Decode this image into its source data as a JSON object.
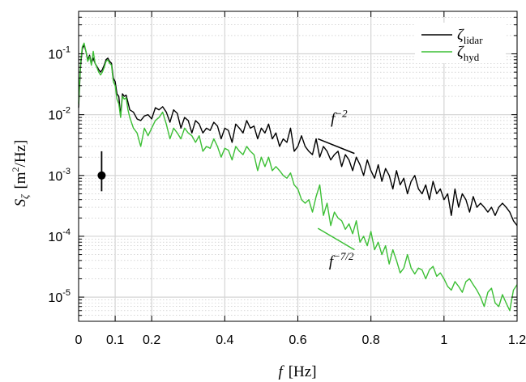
{
  "chart_data": {
    "type": "line",
    "xlabel": {
      "var": "f",
      "unit": "[Hz]"
    },
    "ylabel": {
      "var": "S",
      "sub": "ζ",
      "unit_pre": "[m",
      "unit_sup": "2",
      "unit_post": "/Hz]"
    },
    "xlim": [
      0,
      1.2
    ],
    "ylim": [
      4e-06,
      0.5
    ],
    "yscale": "log",
    "grid": true,
    "legend_position": "top-right",
    "x_ticks": [
      {
        "value": 0,
        "label": "0"
      },
      {
        "value": 0.1,
        "label": "0.1"
      },
      {
        "value": 0.2,
        "label": "0.2"
      },
      {
        "value": 0.4,
        "label": "0.4"
      },
      {
        "value": 0.6,
        "label": "0.6"
      },
      {
        "value": 0.8,
        "label": "0.8"
      },
      {
        "value": 1.0,
        "label": "1"
      },
      {
        "value": 1.2,
        "label": "1.2"
      }
    ],
    "y_ticks": [
      {
        "value": 1e-05,
        "base": "10",
        "exp": "-5"
      },
      {
        "value": 0.0001,
        "base": "10",
        "exp": "-4"
      },
      {
        "value": 0.001,
        "base": "10",
        "exp": "-3"
      },
      {
        "value": 0.01,
        "base": "10",
        "exp": "-2"
      },
      {
        "value": 0.1,
        "base": "10",
        "exp": "-1"
      }
    ],
    "series": [
      {
        "name": "ζ",
        "name_sub": "lidar",
        "color": "#000000",
        "x": [
          0.0,
          0.005,
          0.01,
          0.015,
          0.02,
          0.025,
          0.03,
          0.035,
          0.04,
          0.045,
          0.05,
          0.055,
          0.06,
          0.065,
          0.07,
          0.075,
          0.08,
          0.085,
          0.09,
          0.095,
          0.1,
          0.105,
          0.11,
          0.115,
          0.12,
          0.125,
          0.13,
          0.135,
          0.14,
          0.15,
          0.16,
          0.17,
          0.18,
          0.19,
          0.2,
          0.21,
          0.22,
          0.23,
          0.24,
          0.25,
          0.26,
          0.27,
          0.28,
          0.29,
          0.3,
          0.31,
          0.32,
          0.33,
          0.34,
          0.35,
          0.36,
          0.37,
          0.38,
          0.39,
          0.4,
          0.41,
          0.42,
          0.43,
          0.44,
          0.45,
          0.46,
          0.47,
          0.48,
          0.49,
          0.5,
          0.51,
          0.52,
          0.53,
          0.54,
          0.55,
          0.56,
          0.57,
          0.58,
          0.59,
          0.6,
          0.61,
          0.62,
          0.63,
          0.64,
          0.65,
          0.66,
          0.67,
          0.68,
          0.69,
          0.7,
          0.71,
          0.72,
          0.73,
          0.74,
          0.75,
          0.76,
          0.77,
          0.78,
          0.79,
          0.8,
          0.81,
          0.82,
          0.83,
          0.84,
          0.85,
          0.86,
          0.87,
          0.88,
          0.89,
          0.9,
          0.91,
          0.92,
          0.93,
          0.94,
          0.95,
          0.96,
          0.97,
          0.98,
          0.99,
          1.0,
          1.01,
          1.02,
          1.03,
          1.04,
          1.05,
          1.06,
          1.07,
          1.08,
          1.09,
          1.1,
          1.11,
          1.12,
          1.13,
          1.14,
          1.15,
          1.16,
          1.17,
          1.18,
          1.19,
          1.2
        ],
        "y": [
          0.013,
          0.06,
          0.12,
          0.14,
          0.11,
          0.08,
          0.095,
          0.07,
          0.085,
          0.07,
          0.062,
          0.055,
          0.05,
          0.055,
          0.065,
          0.08,
          0.085,
          0.075,
          0.07,
          0.04,
          0.035,
          0.022,
          0.02,
          0.0095,
          0.022,
          0.02,
          0.021,
          0.016,
          0.012,
          0.011,
          0.0085,
          0.008,
          0.0095,
          0.01,
          0.0085,
          0.013,
          0.012,
          0.0135,
          0.011,
          0.0075,
          0.012,
          0.0105,
          0.006,
          0.009,
          0.008,
          0.005,
          0.008,
          0.007,
          0.005,
          0.006,
          0.0055,
          0.0075,
          0.0065,
          0.004,
          0.006,
          0.0055,
          0.0035,
          0.007,
          0.006,
          0.005,
          0.008,
          0.006,
          0.0065,
          0.004,
          0.006,
          0.005,
          0.007,
          0.004,
          0.005,
          0.003,
          0.004,
          0.0035,
          0.006,
          0.0025,
          0.003,
          0.0045,
          0.003,
          0.0025,
          0.0022,
          0.004,
          0.002,
          0.003,
          0.0025,
          0.0018,
          0.0022,
          0.0025,
          0.0014,
          0.0022,
          0.0018,
          0.0012,
          0.002,
          0.0015,
          0.001,
          0.0018,
          0.0012,
          0.0009,
          0.0015,
          0.0008,
          0.0013,
          0.001,
          0.0006,
          0.0012,
          0.0007,
          0.0009,
          0.0005,
          0.0008,
          0.001,
          0.0006,
          0.0005,
          0.0007,
          0.0004,
          0.0008,
          0.0005,
          0.0006,
          0.0004,
          0.0005,
          0.00022,
          0.0006,
          0.0003,
          0.0005,
          0.0004,
          0.00025,
          0.00045,
          0.0003,
          0.00035,
          0.0003,
          0.00025,
          0.0003,
          0.00022,
          0.0003,
          0.00035,
          0.0003,
          0.00025,
          0.00018,
          0.00015
        ]
      },
      {
        "name": "ζ",
        "name_sub": "hyd",
        "color": "#3cbf35",
        "x": [
          0.0,
          0.005,
          0.01,
          0.015,
          0.02,
          0.025,
          0.03,
          0.035,
          0.04,
          0.045,
          0.05,
          0.055,
          0.06,
          0.065,
          0.07,
          0.075,
          0.08,
          0.085,
          0.09,
          0.095,
          0.1,
          0.105,
          0.11,
          0.115,
          0.12,
          0.125,
          0.13,
          0.135,
          0.14,
          0.15,
          0.16,
          0.17,
          0.18,
          0.19,
          0.2,
          0.21,
          0.22,
          0.23,
          0.24,
          0.25,
          0.26,
          0.27,
          0.28,
          0.29,
          0.3,
          0.31,
          0.32,
          0.33,
          0.34,
          0.35,
          0.36,
          0.37,
          0.38,
          0.39,
          0.4,
          0.41,
          0.42,
          0.43,
          0.44,
          0.45,
          0.46,
          0.47,
          0.48,
          0.49,
          0.5,
          0.51,
          0.52,
          0.53,
          0.54,
          0.55,
          0.56,
          0.57,
          0.58,
          0.59,
          0.6,
          0.61,
          0.62,
          0.63,
          0.64,
          0.65,
          0.66,
          0.67,
          0.68,
          0.69,
          0.7,
          0.71,
          0.72,
          0.73,
          0.74,
          0.75,
          0.76,
          0.77,
          0.78,
          0.79,
          0.8,
          0.81,
          0.82,
          0.83,
          0.84,
          0.85,
          0.86,
          0.87,
          0.88,
          0.89,
          0.9,
          0.91,
          0.92,
          0.93,
          0.94,
          0.95,
          0.96,
          0.97,
          0.98,
          0.99,
          1.0,
          1.01,
          1.02,
          1.03,
          1.04,
          1.05,
          1.06,
          1.07,
          1.08,
          1.09,
          1.1,
          1.11,
          1.12,
          1.13,
          1.14,
          1.15,
          1.16,
          1.17,
          1.18,
          1.19,
          1.2
        ],
        "y": [
          0.015,
          0.065,
          0.13,
          0.15,
          0.11,
          0.075,
          0.09,
          0.065,
          0.11,
          0.07,
          0.06,
          0.05,
          0.045,
          0.05,
          0.06,
          0.075,
          0.08,
          0.07,
          0.065,
          0.035,
          0.03,
          0.018,
          0.015,
          0.009,
          0.02,
          0.018,
          0.019,
          0.012,
          0.009,
          0.006,
          0.005,
          0.003,
          0.006,
          0.0045,
          0.006,
          0.008,
          0.009,
          0.011,
          0.007,
          0.004,
          0.006,
          0.005,
          0.004,
          0.006,
          0.005,
          0.0045,
          0.0035,
          0.0045,
          0.0025,
          0.003,
          0.0028,
          0.004,
          0.003,
          0.002,
          0.0028,
          0.0026,
          0.0018,
          0.003,
          0.0025,
          0.0022,
          0.003,
          0.0025,
          0.0022,
          0.0012,
          0.002,
          0.0014,
          0.002,
          0.0012,
          0.0014,
          0.0012,
          0.001,
          0.0009,
          0.0011,
          0.0007,
          0.0006,
          0.0004,
          0.00035,
          0.0004,
          0.00025,
          0.00045,
          0.0007,
          0.00022,
          0.00035,
          0.00015,
          0.00025,
          0.0002,
          0.00018,
          0.00013,
          0.00016,
          0.00011,
          0.00018,
          8e-05,
          0.0001,
          7e-05,
          0.00012,
          6e-05,
          8e-05,
          5e-05,
          7e-05,
          3.5e-05,
          6e-05,
          4e-05,
          2.5e-05,
          3e-05,
          5e-05,
          3e-05,
          2.4e-05,
          3e-05,
          2.8e-05,
          2e-05,
          2.8e-05,
          3.2e-05,
          2.2e-05,
          2.5e-05,
          2e-05,
          1.5e-05,
          1.3e-05,
          1.8e-05,
          1.5e-05,
          1.2e-05,
          1.8e-05,
          2e-05,
          1.6e-05,
          1.3e-05,
          1e-05,
          7e-06,
          1.2e-05,
          1.4e-05,
          8e-06,
          7e-06,
          1.1e-05,
          8e-06,
          6e-06,
          1.3e-05,
          1.6e-05
        ]
      }
    ],
    "annotations": [
      {
        "kind": "slope-line",
        "color": "#000000",
        "x": [
          0.655,
          0.755
        ],
        "y": [
          0.004,
          0.0023
        ],
        "label_base": "f",
        "label_exp": "−2",
        "label_at": [
          0.69,
          0.0072
        ]
      },
      {
        "kind": "slope-line",
        "color": "#3cbf35",
        "x": [
          0.655,
          0.755
        ],
        "y": [
          0.000135,
          6e-05
        ],
        "label_base": "f",
        "label_exp": "−7/2",
        "label_at": [
          0.685,
          3.2e-05
        ]
      }
    ],
    "error_bar": {
      "x": 0.063,
      "y": 0.001,
      "y_low": 0.00055,
      "y_high": 0.0025,
      "color": "#000000"
    }
  }
}
